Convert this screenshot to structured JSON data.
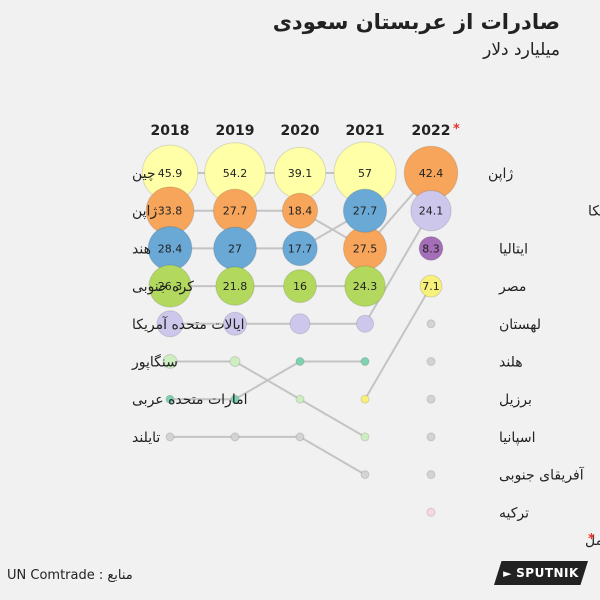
{
  "header": {
    "title": "صادرات از عربستان سعودی",
    "subtitle": "میلیارد دلار"
  },
  "footer": {
    "source": "منابع : UN Comtrade",
    "incomplete_note": "داده های ناکامل",
    "brand": "SPUTNIK"
  },
  "colors": {
    "China": "#ffffa8",
    "Japan": "#f7a55a",
    "India": "#6aa9d6",
    "South Korea": "#b2d95e",
    "USA": "#cdc7ec",
    "Singapore": "#cdeec0",
    "UAE": "#7fd2b0",
    "Thailand": "#d3d3d3",
    "Italy": "#a46fb8",
    "Egypt": "#f7f07a",
    "Poland": "#d3d3d3",
    "Netherlands": "#d3d3d3",
    "Brazil": "#d3d3d3",
    "Spain": "#d3d3d3",
    "South Africa": "#d3d3d3",
    "Turkey": "#f6d8df",
    "star": "#e8322b",
    "line": "#c4c4c4"
  },
  "chart_data": {
    "type": "bump",
    "title": "صادرات از عربستان سعودی",
    "subtitle": "میلیارد دلار",
    "years": [
      "2018",
      "2019",
      "2020",
      "2021",
      "2022"
    ],
    "year_note_mark": "*",
    "note": "داده های ناکامل",
    "source": "UN Comtrade",
    "series": [
      {
        "key": "China",
        "label_left": "چین",
        "label_right": "",
        "ranks": [
          1,
          1,
          1,
          1,
          null
        ],
        "values": [
          45.9,
          54.2,
          39.1,
          57,
          null
        ],
        "show": [
          true,
          true,
          true,
          true,
          false
        ]
      },
      {
        "key": "Japan",
        "label_left": "ژاپن",
        "label_right": "ژاپن",
        "ranks": [
          2,
          2,
          2,
          3,
          1
        ],
        "values": [
          33.8,
          27.7,
          18.4,
          27.5,
          42.4
        ],
        "show": [
          true,
          true,
          true,
          true,
          true
        ]
      },
      {
        "key": "India",
        "label_left": "هند",
        "label_right": "",
        "ranks": [
          3,
          3,
          3,
          2,
          null
        ],
        "values": [
          28.4,
          27,
          17.7,
          27.7,
          null
        ],
        "show": [
          true,
          true,
          true,
          true,
          false
        ]
      },
      {
        "key": "South Korea",
        "label_left": "کره جنوبی",
        "label_right": "",
        "ranks": [
          4,
          4,
          4,
          4,
          null
        ],
        "values": [
          26.3,
          21.8,
          16,
          24.3,
          null
        ],
        "show": [
          true,
          true,
          true,
          true,
          false
        ]
      },
      {
        "key": "USA",
        "label_left": "ایالات متحده آمریکا",
        "label_right": "ایالات متحده آمریکا",
        "ranks": [
          5,
          5,
          5,
          5,
          2
        ],
        "values": [
          null,
          null,
          null,
          null,
          24.1
        ],
        "show": [
          false,
          false,
          false,
          false,
          true
        ]
      },
      {
        "key": "Singapore",
        "label_left": "سنگاپور",
        "label_right": "",
        "ranks": [
          6,
          6,
          7,
          8,
          null
        ],
        "values": [
          null,
          null,
          null,
          null,
          null
        ],
        "show": [
          false,
          false,
          false,
          false,
          false
        ]
      },
      {
        "key": "UAE",
        "label_left": "امارات متحده عربی",
        "label_right": "",
        "ranks": [
          7,
          7,
          6,
          6,
          null
        ],
        "values": [
          null,
          null,
          null,
          null,
          null
        ],
        "show": [
          false,
          false,
          false,
          false,
          false
        ]
      },
      {
        "key": "Thailand",
        "label_left": "تایلند",
        "label_right": "",
        "ranks": [
          8,
          8,
          8,
          9,
          null
        ],
        "values": [
          null,
          null,
          null,
          null,
          null
        ],
        "show": [
          false,
          false,
          false,
          false,
          false
        ]
      },
      {
        "key": "Italy",
        "label_left": "",
        "label_right": "ایتالیا",
        "ranks": [
          null,
          null,
          null,
          null,
          3
        ],
        "values": [
          null,
          null,
          null,
          null,
          8.3
        ],
        "show": [
          false,
          false,
          false,
          false,
          true
        ]
      },
      {
        "key": "Egypt",
        "label_left": "",
        "label_right": "مصر",
        "ranks": [
          null,
          null,
          null,
          7,
          4
        ],
        "values": [
          null,
          null,
          null,
          null,
          7.1
        ],
        "show": [
          false,
          false,
          false,
          false,
          true
        ]
      },
      {
        "key": "Poland",
        "label_left": "",
        "label_right": "لهستان",
        "ranks": [
          null,
          null,
          null,
          null,
          5
        ],
        "values": [
          null,
          null,
          null,
          null,
          null
        ],
        "show": [
          false,
          false,
          false,
          false,
          false
        ]
      },
      {
        "key": "Netherlands",
        "label_left": "",
        "label_right": "هلند",
        "ranks": [
          null,
          null,
          null,
          null,
          6
        ],
        "values": [
          null,
          null,
          null,
          null,
          null
        ],
        "show": [
          false,
          false,
          false,
          false,
          false
        ]
      },
      {
        "key": "Brazil",
        "label_left": "",
        "label_right": "برزیل",
        "ranks": [
          null,
          null,
          null,
          null,
          7
        ],
        "values": [
          null,
          null,
          null,
          null,
          null
        ],
        "show": [
          false,
          false,
          false,
          false,
          false
        ]
      },
      {
        "key": "Spain",
        "label_left": "",
        "label_right": "اسپانیا",
        "ranks": [
          null,
          null,
          null,
          null,
          8
        ],
        "values": [
          null,
          null,
          null,
          null,
          null
        ],
        "show": [
          false,
          false,
          false,
          false,
          false
        ]
      },
      {
        "key": "South Africa",
        "label_left": "",
        "label_right": "آفریقای جنوبی",
        "ranks": [
          null,
          null,
          null,
          null,
          9
        ],
        "values": [
          null,
          null,
          null,
          null,
          null
        ],
        "show": [
          false,
          false,
          false,
          false,
          false
        ]
      },
      {
        "key": "Turkey",
        "label_left": "",
        "label_right": "ترکیه",
        "ranks": [
          null,
          null,
          null,
          null,
          10
        ],
        "values": [
          null,
          null,
          null,
          null,
          null
        ],
        "show": [
          false,
          false,
          false,
          false,
          false
        ]
      }
    ]
  }
}
